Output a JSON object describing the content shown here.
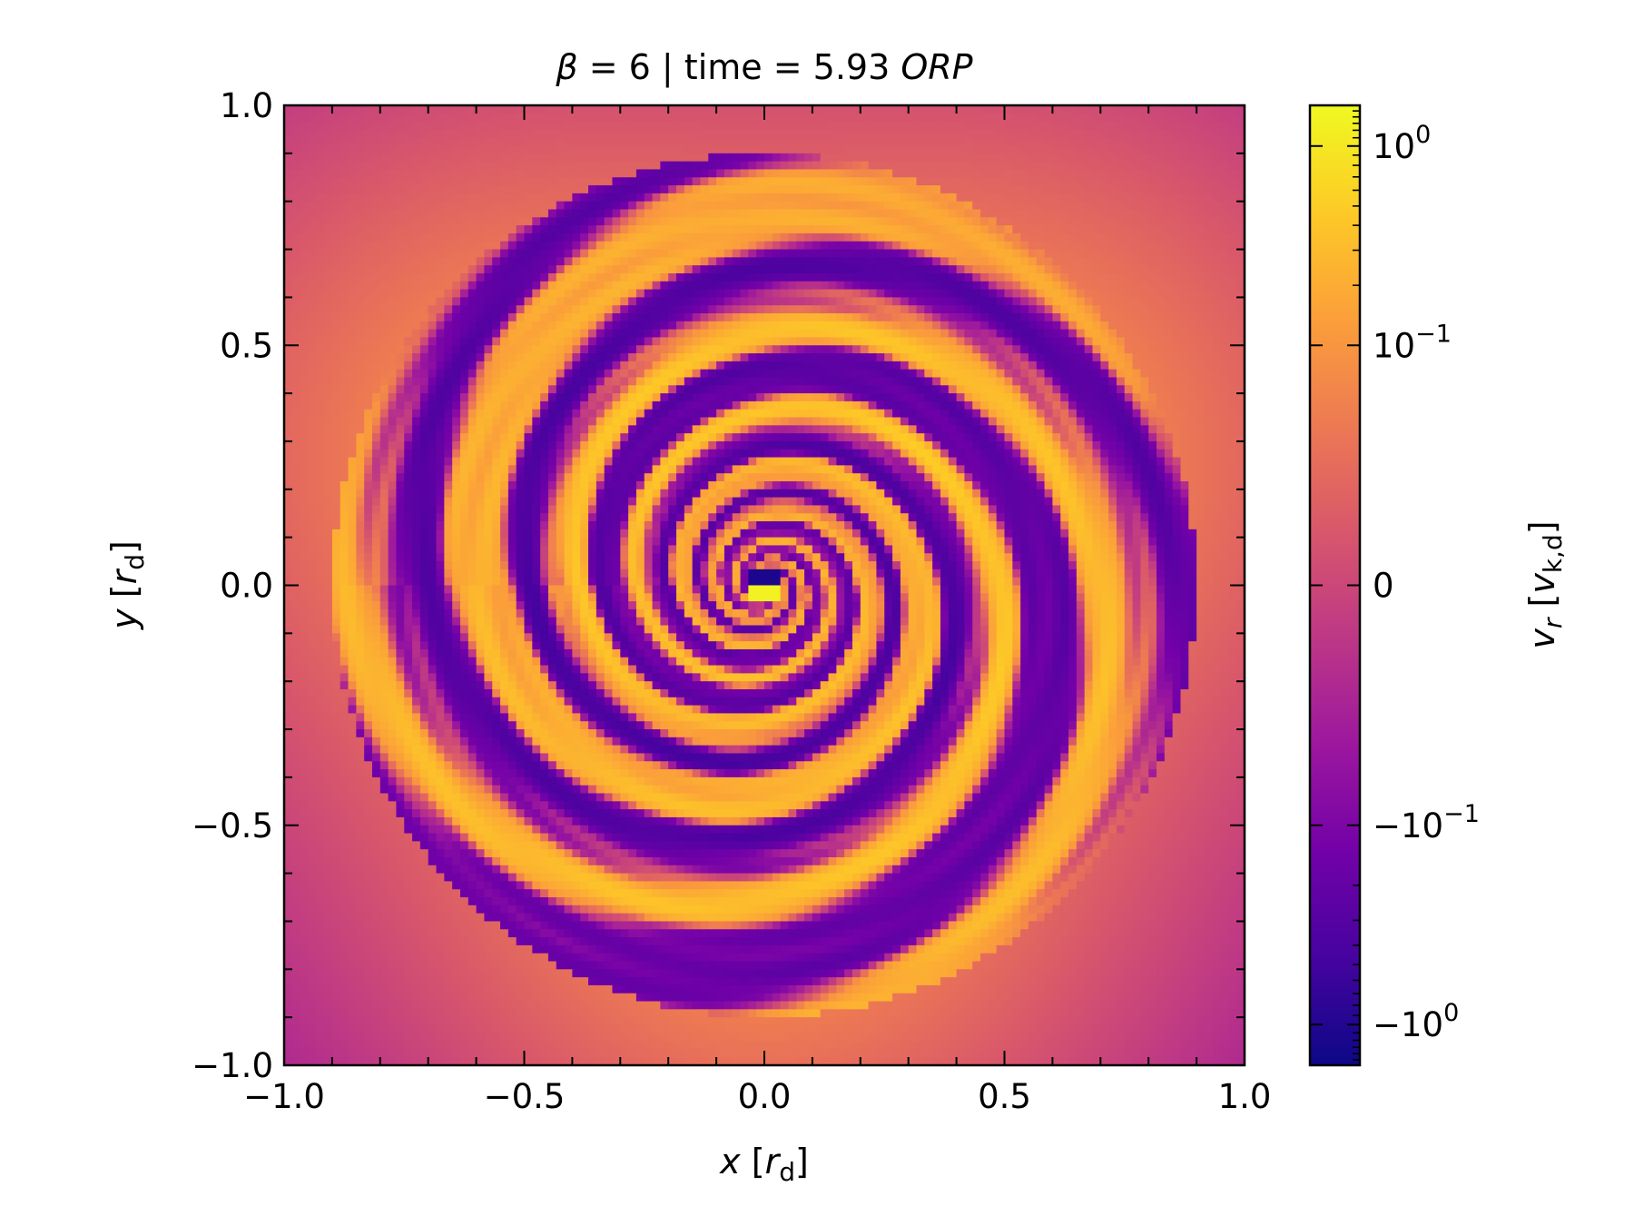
{
  "chart_data": {
    "type": "heatmap",
    "title": {
      "parts": [
        {
          "text": "β",
          "italic": true
        },
        {
          "text": " = 6 | time = 5.93 ",
          "italic": false
        },
        {
          "text": "ORP",
          "italic": true
        }
      ]
    },
    "xlabel": {
      "var": "x",
      "unit_open": " [",
      "unit_var": "r",
      "unit_sub": "d",
      "unit_close": "]"
    },
    "ylabel": {
      "var": "y",
      "unit_open": " [",
      "unit_var": "r",
      "unit_sub": "d",
      "unit_close": "]"
    },
    "xlim": [
      -1.0,
      1.0
    ],
    "ylim": [
      -1.0,
      1.0
    ],
    "x_ticks": [
      -1.0,
      -0.5,
      0.0,
      0.5,
      1.0
    ],
    "x_tick_labels": [
      "−1.0",
      "−0.5",
      "0.0",
      "0.5",
      "1.0"
    ],
    "y_ticks": [
      -1.0,
      -0.5,
      0.0,
      0.5,
      1.0
    ],
    "y_tick_labels": [
      "−1.0",
      "−0.5",
      "0.0",
      "0.5",
      "1.0"
    ],
    "minor_tick_step": 0.1,
    "colormap": "plasma",
    "colormap_stops": [
      "#0d0887",
      "#46039f",
      "#7201a8",
      "#9c179e",
      "#bd3786",
      "#d8576b",
      "#ed7953",
      "#fb9f3a",
      "#fdca26",
      "#f0f921"
    ],
    "norm": "symlog",
    "norm_linthresh": 0.1,
    "clim": [
      -1.6,
      1.6
    ],
    "colorbar": {
      "label": {
        "var": "v",
        "var_sub": "r",
        "unit_open": " [",
        "unit_var": "v",
        "unit_sub": "k,d",
        "unit_close": "]"
      },
      "major_ticks": [
        {
          "value": 1.0,
          "base": "10",
          "exp": "0",
          "sign": ""
        },
        {
          "value": 0.1,
          "base": "10",
          "exp": "−1",
          "sign": ""
        },
        {
          "value": 0.0,
          "base": "0",
          "exp": "",
          "sign": ""
        },
        {
          "value": -0.1,
          "base": "10",
          "exp": "−1",
          "sign": "−"
        },
        {
          "value": -1.0,
          "base": "10",
          "exp": "0",
          "sign": "−"
        }
      ],
      "minor_ticks": [
        0.2,
        0.3,
        0.4,
        0.5,
        0.6,
        0.7,
        0.8,
        0.9,
        1.1,
        1.2,
        1.3,
        1.4,
        1.5,
        -0.2,
        -0.3,
        -0.4,
        -0.5,
        -0.6,
        -0.7,
        -0.8,
        -0.9,
        -1.1,
        -1.2,
        -1.3,
        -1.4,
        -1.5
      ]
    },
    "field": {
      "description_free": true,
      "background_level": 0.45,
      "spiral_arms": 3,
      "spiral_pitch": 5.5,
      "center_value": 1.3,
      "inner_value": -1.2
    }
  }
}
